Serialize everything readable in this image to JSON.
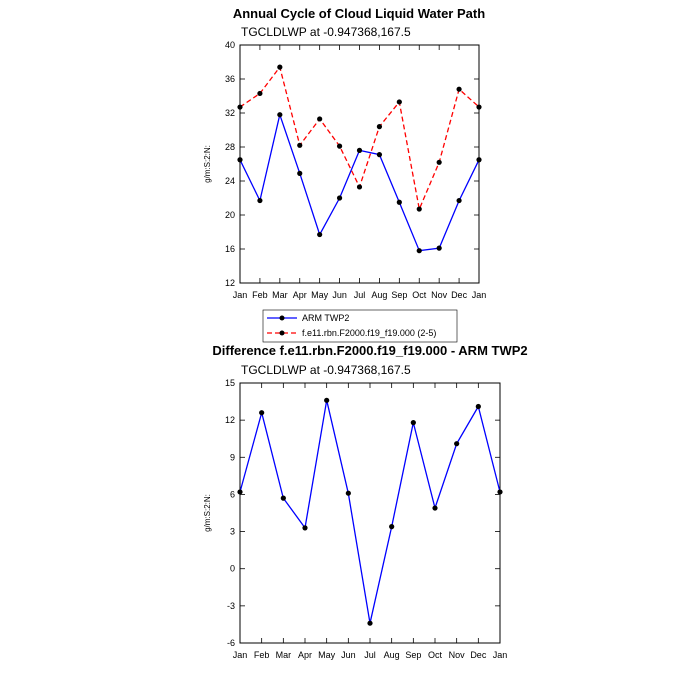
{
  "chart_data": [
    {
      "type": "line",
      "title": "Annual Cycle of Cloud Liquid Water Path",
      "subtitle": "TGCLDLWP at -0.947368,167.5",
      "ylabel": "g/m:S:2:N:",
      "xlabel": "",
      "categories": [
        "Jan",
        "Feb",
        "Mar",
        "Apr",
        "May",
        "Jun",
        "Jul",
        "Aug",
        "Sep",
        "Oct",
        "Nov",
        "Dec",
        "Jan"
      ],
      "ylim": [
        12,
        40
      ],
      "yticks": [
        "12",
        "16",
        "20",
        "24",
        "28",
        "32",
        "36",
        "40"
      ],
      "series": [
        {
          "name": "ARM TWP2",
          "color": "#0000ff",
          "dash": "solid",
          "values": [
            26.5,
            21.7,
            31.8,
            24.9,
            17.7,
            22.0,
            27.6,
            27.1,
            21.5,
            15.8,
            16.1,
            21.7,
            26.5
          ]
        },
        {
          "name": "f.e11.rbn.F2000.f19_f19.000 (2-5)",
          "color": "#ff0000",
          "dash": "dashed",
          "values": [
            32.7,
            34.3,
            37.4,
            28.2,
            31.3,
            28.1,
            23.3,
            30.4,
            33.3,
            20.7,
            26.2,
            34.8,
            32.7
          ]
        }
      ],
      "legend": "below"
    },
    {
      "type": "line",
      "title": "Difference f.e11.rbn.F2000.f19_f19.000 - ARM TWP2",
      "subtitle": "TGCLDLWP at -0.947368,167.5",
      "ylabel": "g/m:S:2:N:",
      "xlabel": "",
      "categories": [
        "Jan",
        "Feb",
        "Mar",
        "Apr",
        "May",
        "Jun",
        "Jul",
        "Aug",
        "Sep",
        "Oct",
        "Nov",
        "Dec",
        "Jan"
      ],
      "ylim": [
        -6,
        15
      ],
      "yticks": [
        "-6",
        "-3",
        "0",
        "3",
        "6",
        "9",
        "12",
        "15"
      ],
      "series": [
        {
          "color": "#0000ff",
          "dash": "solid",
          "values": [
            6.2,
            12.6,
            5.7,
            3.3,
            13.6,
            6.1,
            -4.4,
            3.4,
            11.8,
            4.9,
            10.1,
            13.1,
            6.2
          ]
        }
      ]
    }
  ]
}
